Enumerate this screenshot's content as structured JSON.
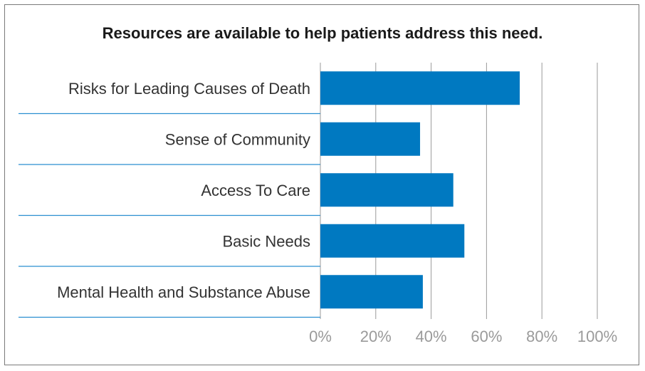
{
  "chart_data": {
    "type": "bar",
    "orientation": "horizontal",
    "title": "Resources are available to help patients address this need.",
    "categories": [
      "Risks for Leading Causes of Death",
      "Sense of Community",
      "Access To Care",
      "Basic Needs",
      "Mental Health and Substance Abuse"
    ],
    "values": [
      72,
      36,
      48,
      52,
      37
    ],
    "xlim": [
      0,
      100
    ],
    "xticks": [
      "0%",
      "20%",
      "40%",
      "60%",
      "80%",
      "100%"
    ],
    "xtick_values": [
      0,
      20,
      40,
      60,
      80,
      100
    ],
    "grid": true,
    "colors": {
      "bar": "#0079c1",
      "divider": "#2a8fd0",
      "grid": "#9a9a9a"
    }
  }
}
